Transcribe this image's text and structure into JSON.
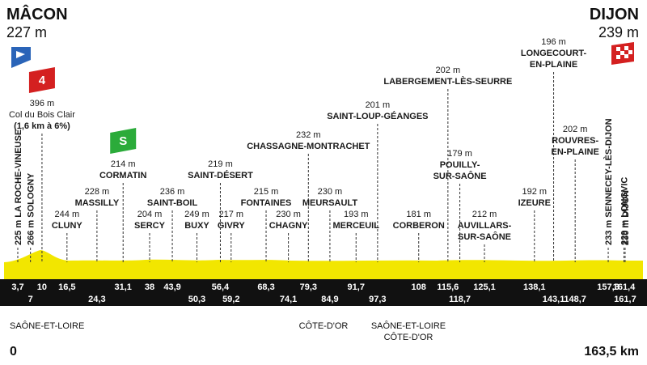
{
  "start": {
    "name": "MÂCON",
    "altitude": "227 m"
  },
  "finish": {
    "name": "DIJON",
    "altitude": "239 m"
  },
  "places": [
    {
      "altitude": "225 m",
      "name": [
        "LA ROCHE-VINEUSE"
      ],
      "km": "3,7"
    },
    {
      "altitude": "266 m",
      "name": [
        "SOLOGNY"
      ],
      "km": "7"
    },
    {
      "badge": "4",
      "altitude": "396 m",
      "name": [
        "Col du Bois Clair"
      ],
      "detail": "(1,6 km à 6%)",
      "km": "10"
    },
    {
      "altitude": "244 m",
      "name": [
        "CLUNY"
      ],
      "km": "16,5"
    },
    {
      "altitude": "228 m",
      "name": [
        "MASSILLY"
      ],
      "km": "24,3"
    },
    {
      "badge": "S",
      "altitude": "214 m",
      "name": [
        "CORMATIN"
      ],
      "km": "31,1"
    },
    {
      "altitude": "204 m",
      "name": [
        "SERCY"
      ],
      "km": "38"
    },
    {
      "altitude": "236 m",
      "name": [
        "SAINT-BOIL"
      ],
      "km": "43,9"
    },
    {
      "altitude": "249 m",
      "name": [
        "BUXY"
      ],
      "km": "50,3"
    },
    {
      "altitude": "219 m",
      "name": [
        "SAINT-DÉSERT"
      ],
      "km": "56,4"
    },
    {
      "altitude": "217 m",
      "name": [
        "GIVRY"
      ],
      "km": "59,2"
    },
    {
      "altitude": "215 m",
      "name": [
        "FONTAINES"
      ],
      "km": "68,3"
    },
    {
      "altitude": "230 m",
      "name": [
        "CHAGNY"
      ],
      "km": "74,1"
    },
    {
      "altitude": "232 m",
      "name": [
        "CHASSAGNE-MONTRACHET"
      ],
      "km": "79,3"
    },
    {
      "altitude": "230 m",
      "name": [
        "MEURSAULT"
      ],
      "km": "84,9"
    },
    {
      "altitude": "193 m",
      "name": [
        "MERCEUIL"
      ],
      "km": "91,7"
    },
    {
      "altitude": "201 m",
      "name": [
        "SAINT-LOUP-GÉANGES"
      ],
      "km": "97,3"
    },
    {
      "altitude": "181 m",
      "name": [
        "CORBERON"
      ],
      "km": "108"
    },
    {
      "altitude": "202 m",
      "name": [
        "LABERGEMENT-LÈS-SEURRE"
      ],
      "km": "115,6"
    },
    {
      "altitude": "179 m",
      "name": [
        "POUILLY-",
        "SUR-SAÔNE"
      ],
      "km": "118,7"
    },
    {
      "altitude": "212 m",
      "name": [
        "AUVILLARS-",
        "SUR-SAÔNE"
      ],
      "km": "125,1"
    },
    {
      "altitude": "192 m",
      "name": [
        "IZEURE"
      ],
      "km": "138,1"
    },
    {
      "altitude": "196 m",
      "name": [
        "LONGECOURT-",
        "EN-PLAINE"
      ],
      "km": "143,1"
    },
    {
      "altitude": "202 m",
      "name": [
        "ROUVRES-",
        "EN-PLAINE"
      ],
      "km": "148,7"
    },
    {
      "altitude": "233 m",
      "name": [
        "SENNECEY-LÈS-DIJON"
      ],
      "km": "157,3"
    },
    {
      "altitude": "229 m",
      "name": [
        "LONGVIC"
      ],
      "km": "161,4"
    },
    {
      "altitude": "230 m",
      "name": [
        "DIJON"
      ],
      "km": "161,7"
    }
  ],
  "regions": [
    [
      "SAÔNE-ET-LOIRE"
    ],
    [
      "CÔTE-D'OR"
    ],
    [
      "SAÔNE-ET-LOIRE",
      "CÔTE-D'OR"
    ]
  ],
  "distance": {
    "start": "0",
    "total": "163,5 km"
  }
}
